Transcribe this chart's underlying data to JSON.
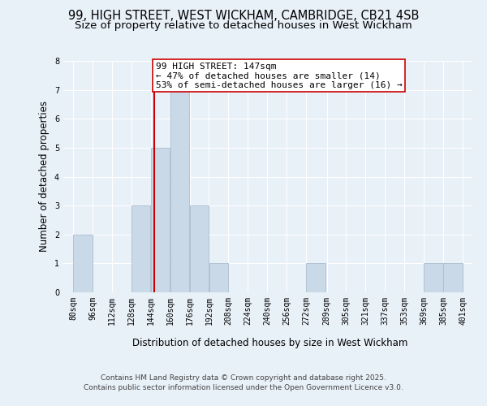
{
  "title_line1": "99, HIGH STREET, WEST WICKHAM, CAMBRIDGE, CB21 4SB",
  "title_line2": "Size of property relative to detached houses in West Wickham",
  "xlabel": "Distribution of detached houses by size in West Wickham",
  "ylabel": "Number of detached properties",
  "bin_labels": [
    "80sqm",
    "96sqm",
    "112sqm",
    "128sqm",
    "144sqm",
    "160sqm",
    "176sqm",
    "192sqm",
    "208sqm",
    "224sqm",
    "240sqm",
    "256sqm",
    "272sqm",
    "289sqm",
    "305sqm",
    "321sqm",
    "337sqm",
    "353sqm",
    "369sqm",
    "385sqm",
    "401sqm"
  ],
  "bin_edges": [
    80,
    96,
    112,
    128,
    144,
    160,
    176,
    192,
    208,
    224,
    240,
    256,
    272,
    289,
    305,
    321,
    337,
    353,
    369,
    385,
    401
  ],
  "bar_heights": [
    2,
    0,
    0,
    3,
    5,
    7,
    3,
    1,
    0,
    0,
    0,
    0,
    1,
    0,
    0,
    0,
    0,
    0,
    1,
    1,
    0
  ],
  "bar_color": "#c9d9e8",
  "bar_edgecolor": "#aabccc",
  "property_line_x": 147,
  "property_line_color": "#cc0000",
  "annotation_text": "99 HIGH STREET: 147sqm\n← 47% of detached houses are smaller (14)\n53% of semi-detached houses are larger (16) →",
  "annotation_box_edgecolor": "#cc0000",
  "annotation_box_facecolor": "#ffffff",
  "ylim": [
    0,
    8
  ],
  "yticks": [
    0,
    1,
    2,
    3,
    4,
    5,
    6,
    7,
    8
  ],
  "background_color": "#e8f0f8",
  "plot_background_color": "#e8f0f8",
  "footer_line1": "Contains HM Land Registry data © Crown copyright and database right 2025.",
  "footer_line2": "Contains public sector information licensed under the Open Government Licence v3.0.",
  "title_fontsize": 10.5,
  "subtitle_fontsize": 9.5,
  "axis_label_fontsize": 8.5,
  "tick_fontsize": 7,
  "annotation_fontsize": 8,
  "footer_fontsize": 6.5
}
